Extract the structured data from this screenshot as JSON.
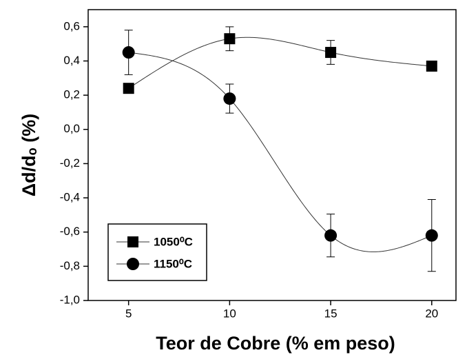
{
  "chart_data": {
    "type": "scatter",
    "x_label": "Teor de Cobre (% em peso)",
    "y_label": "Δd/dₒ (%)",
    "x": [
      5,
      10,
      15,
      20
    ],
    "series": [
      {
        "name": "1050⁰C",
        "marker": "square",
        "color": "#000000",
        "values": [
          0.24,
          0.53,
          0.45,
          0.37
        ],
        "errors": [
          0,
          0.07,
          0.07,
          0
        ]
      },
      {
        "name": "1150⁰C",
        "marker": "circle",
        "color": "#000000",
        "values": [
          0.45,
          0.18,
          -0.62,
          -0.62
        ],
        "errors": [
          0.13,
          0.085,
          0.125,
          0.21
        ]
      }
    ],
    "xlim": [
      3,
      21.2
    ],
    "ylim": [
      -1.0,
      0.7
    ],
    "xticks": [
      5,
      10,
      15,
      20
    ],
    "yticks": [
      {
        "value": -1.0,
        "label": "-1,0"
      },
      {
        "value": -0.8,
        "label": "-0,8"
      },
      {
        "value": -0.6,
        "label": "-0,6"
      },
      {
        "value": -0.4,
        "label": "-0,4"
      },
      {
        "value": -0.2,
        "label": "-0,2"
      },
      {
        "value": 0.0,
        "label": "0,0"
      },
      {
        "value": 0.2,
        "label": "0,2"
      },
      {
        "value": 0.4,
        "label": "0,4"
      },
      {
        "value": 0.6,
        "label": "0,6"
      }
    ],
    "legend": "lower left"
  }
}
